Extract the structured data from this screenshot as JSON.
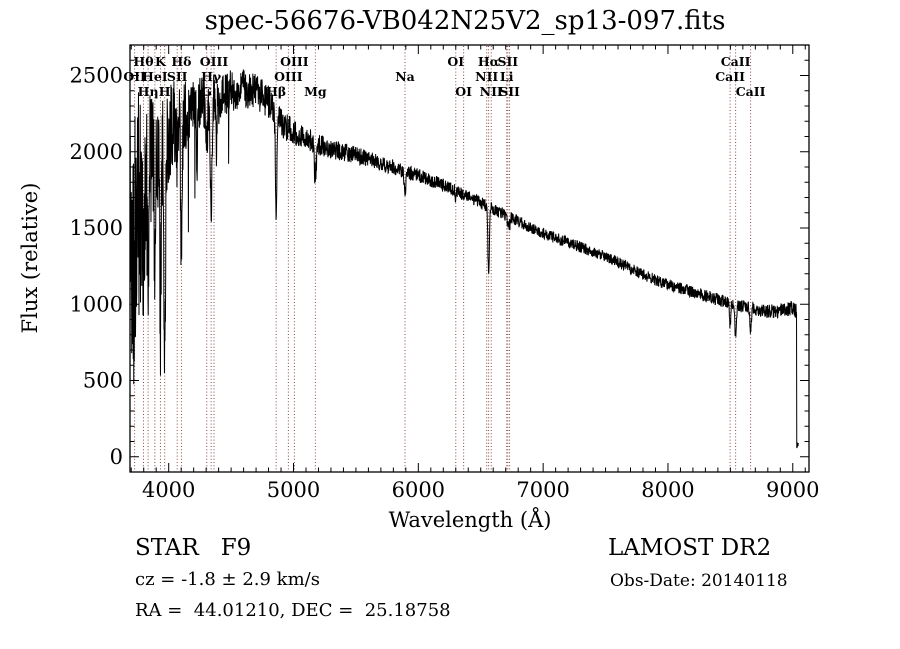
{
  "title": "spec-56676-VB042N25V2_sp13-097.fits",
  "footer": {
    "class_label": "STAR   F9",
    "cz": "cz = -1.8 ± 2.9 km/s",
    "radec": "RA =  44.01210, DEC =  25.18758",
    "survey": "LAMOST DR2",
    "obs_date": "Obs-Date: 20140118"
  },
  "chart_data": {
    "type": "line",
    "title": "spec-56676-VB042N25V2_sp13-097.fits",
    "xlabel": "Wavelength (Å)",
    "ylabel": "Flux (relative)",
    "xlim": [
      3690,
      9130
    ],
    "ylim": [
      -100,
      2700
    ],
    "x_ticks": [
      4000,
      5000,
      6000,
      7000,
      8000,
      9000
    ],
    "y_ticks": [
      0,
      500,
      1000,
      1500,
      2000,
      2500
    ],
    "x_minor_step": 100,
    "y_minor_step": 100,
    "grid": false,
    "line_color": "#000000",
    "marker_line_color": "#8b4545",
    "label_rows_y": {
      "1": 66,
      "2": 81,
      "3": 96
    },
    "spectral_lines": [
      {
        "label": "OII",
        "wavelength": 3727,
        "row": 2
      },
      {
        "label": "Hθ",
        "wavelength": 3798,
        "row": 1
      },
      {
        "label": "Hη",
        "wavelength": 3835,
        "row": 3
      },
      {
        "label": "HeI",
        "wavelength": 3889,
        "row": 2
      },
      {
        "label": "K",
        "wavelength": 3934,
        "row": 1
      },
      {
        "label": "H",
        "wavelength": 3968,
        "row": 3
      },
      {
        "label": "SII",
        "wavelength": 4068,
        "row": 2
      },
      {
        "label": "Hδ",
        "wavelength": 4102,
        "row": 1
      },
      {
        "label": "G",
        "wavelength": 4305,
        "row": 3
      },
      {
        "label": "Hγ",
        "wavelength": 4340,
        "row": 2
      },
      {
        "label": "OIII",
        "wavelength": 4363,
        "row": 1
      },
      {
        "label": "Hβ",
        "wavelength": 4861,
        "row": 3
      },
      {
        "label": "OIII",
        "wavelength": 4959,
        "row": 2
      },
      {
        "label": "OIII",
        "wavelength": 5007,
        "row": 1
      },
      {
        "label": "Mg",
        "wavelength": 5175,
        "row": 3
      },
      {
        "label": "Na",
        "wavelength": 5893,
        "row": 2
      },
      {
        "label": "OI",
        "wavelength": 6300,
        "row": 1
      },
      {
        "label": "OI",
        "wavelength": 6363,
        "row": 3
      },
      {
        "label": "NII",
        "wavelength": 6548,
        "row": 2
      },
      {
        "label": "Hα",
        "wavelength": 6563,
        "row": 1
      },
      {
        "label": "NII",
        "wavelength": 6584,
        "row": 3
      },
      {
        "label": "Li",
        "wavelength": 6708,
        "row": 2
      },
      {
        "label": "SII",
        "wavelength": 6717,
        "row": 1
      },
      {
        "label": "SII",
        "wavelength": 6731,
        "row": 3
      },
      {
        "label": "CaII",
        "wavelength": 8498,
        "row": 2
      },
      {
        "label": "CaII",
        "wavelength": 8542,
        "row": 1
      },
      {
        "label": "CaII",
        "wavelength": 8662,
        "row": 3
      }
    ],
    "spectrum_model": {
      "wavelength_range": [
        3690,
        9045
      ],
      "sample_step": 2,
      "continuum_anchors": [
        [
          3690,
          1300
        ],
        [
          3750,
          1600
        ],
        [
          3800,
          1800
        ],
        [
          3850,
          1900
        ],
        [
          3900,
          1980
        ],
        [
          4000,
          2120
        ],
        [
          4100,
          2220
        ],
        [
          4200,
          2280
        ],
        [
          4300,
          2320
        ],
        [
          4400,
          2370
        ],
        [
          4500,
          2400
        ],
        [
          4600,
          2410
        ],
        [
          4700,
          2390
        ],
        [
          4800,
          2330
        ],
        [
          4900,
          2190
        ],
        [
          5000,
          2130
        ],
        [
          5100,
          2090
        ],
        [
          5200,
          2050
        ],
        [
          5300,
          2020
        ],
        [
          5400,
          2000
        ],
        [
          5500,
          1975
        ],
        [
          5600,
          1950
        ],
        [
          5700,
          1925
        ],
        [
          5800,
          1900
        ],
        [
          5900,
          1870
        ],
        [
          6000,
          1845
        ],
        [
          6100,
          1815
        ],
        [
          6200,
          1780
        ],
        [
          6300,
          1745
        ],
        [
          6400,
          1705
        ],
        [
          6500,
          1665
        ],
        [
          6600,
          1625
        ],
        [
          6700,
          1585
        ],
        [
          6800,
          1545
        ],
        [
          6900,
          1505
        ],
        [
          7000,
          1465
        ],
        [
          7100,
          1435
        ],
        [
          7200,
          1405
        ],
        [
          7300,
          1375
        ],
        [
          7400,
          1345
        ],
        [
          7500,
          1310
        ],
        [
          7600,
          1275
        ],
        [
          7700,
          1235
        ],
        [
          7800,
          1195
        ],
        [
          7900,
          1160
        ],
        [
          8000,
          1130
        ],
        [
          8100,
          1105
        ],
        [
          8200,
          1080
        ],
        [
          8300,
          1055
        ],
        [
          8400,
          1030
        ],
        [
          8500,
          1005
        ],
        [
          8600,
          985
        ],
        [
          8700,
          965
        ],
        [
          8800,
          950
        ],
        [
          8900,
          960
        ],
        [
          9000,
          975
        ],
        [
          9030,
          950
        ]
      ],
      "noise_amplitude_anchors": [
        [
          3690,
          1300
        ],
        [
          3720,
          1000
        ],
        [
          3760,
          800
        ],
        [
          3800,
          600
        ],
        [
          3850,
          500
        ],
        [
          3900,
          420
        ],
        [
          3950,
          380
        ],
        [
          4000,
          330
        ],
        [
          4100,
          260
        ],
        [
          4200,
          200
        ],
        [
          4300,
          170
        ],
        [
          4500,
          140
        ],
        [
          4700,
          120
        ],
        [
          5000,
          85
        ],
        [
          5300,
          65
        ],
        [
          5600,
          55
        ],
        [
          6000,
          48
        ],
        [
          6500,
          40
        ],
        [
          7000,
          38
        ],
        [
          7500,
          36
        ],
        [
          8000,
          38
        ],
        [
          8500,
          42
        ],
        [
          8800,
          45
        ],
        [
          9045,
          50
        ]
      ],
      "absorption_features": [
        [
          3727,
          200,
          4
        ],
        [
          3798,
          650,
          5
        ],
        [
          3835,
          750,
          5
        ],
        [
          3889,
          800,
          5
        ],
        [
          3934,
          1150,
          6
        ],
        [
          3968,
          1400,
          6
        ],
        [
          4068,
          250,
          4
        ],
        [
          4102,
          950,
          6
        ],
        [
          4227,
          350,
          4
        ],
        [
          4305,
          280,
          7
        ],
        [
          4340,
          880,
          6
        ],
        [
          4383,
          300,
          4
        ],
        [
          4861,
          620,
          6
        ],
        [
          5175,
          220,
          8
        ],
        [
          5893,
          150,
          7
        ],
        [
          6300,
          60,
          4
        ],
        [
          6563,
          450,
          6
        ],
        [
          6717,
          60,
          4
        ],
        [
          6731,
          60,
          4
        ],
        [
          8498,
          150,
          5
        ],
        [
          8542,
          210,
          6
        ],
        [
          8662,
          160,
          6
        ]
      ],
      "red_edge_drop": {
        "wavelength": 9030,
        "tail_flux": 100,
        "tail_end": 9045
      }
    }
  }
}
